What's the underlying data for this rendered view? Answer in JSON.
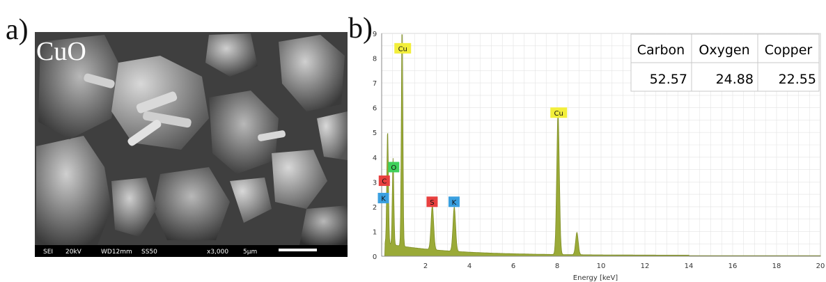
{
  "panel_a": {
    "letter": "a)",
    "overlay_label": "CuO",
    "info_bar": [
      "SEI",
      "20kV",
      "WD12mm",
      "SS50",
      "x3,000",
      "5µm"
    ]
  },
  "panel_b": {
    "letter": "b)",
    "composition_table": {
      "headers": [
        "Carbon",
        "Oxygen",
        "Copper"
      ],
      "values": [
        "52.57",
        "24.88",
        "22.55"
      ]
    }
  },
  "chart_data": {
    "type": "line",
    "xlabel": "Energy [keV]",
    "ylabel": "",
    "xlim": [
      0,
      20
    ],
    "ylim": [
      0,
      9
    ],
    "x_ticks": [
      2,
      4,
      6,
      8,
      10,
      12,
      14,
      16,
      18,
      20
    ],
    "y_ticks": [
      0,
      1,
      2,
      3,
      4,
      5,
      6,
      7,
      8,
      9
    ],
    "grid": true,
    "fill_color": "#9aaa38",
    "peaks": [
      {
        "element": "C",
        "energy": 0.28,
        "counts": 2.6,
        "label_color": "#e8403f"
      },
      {
        "element": "O",
        "energy": 0.52,
        "counts": 3.5,
        "label_color": "#3fd15a"
      },
      {
        "element": "K",
        "energy": 0.26,
        "counts": 2.2,
        "label_color": "#3aa0e0"
      },
      {
        "element": "Cu",
        "energy": 0.93,
        "counts": 8.9,
        "label_color": "#f2ee3a"
      },
      {
        "element": "S",
        "energy": 2.31,
        "counts": 1.8,
        "label_color": "#e8403f"
      },
      {
        "element": "K",
        "energy": 3.31,
        "counts": 1.8,
        "label_color": "#3aa0e0"
      },
      {
        "element": "Cu",
        "energy": 8.04,
        "counts": 5.7,
        "label_color": "#f2ee3a"
      },
      {
        "element": "Cu",
        "energy": 8.9,
        "counts": 0.9,
        "label_color": "#f2ee3a"
      }
    ],
    "labels": [
      {
        "text": "Cu",
        "energy": 0.96,
        "counts": 8.4,
        "color": "#f2ee3a"
      },
      {
        "text": "O",
        "energy": 0.55,
        "counts": 3.6,
        "color": "#3fd15a"
      },
      {
        "text": "C",
        "energy": 0.12,
        "counts": 3.05,
        "color": "#e8403f"
      },
      {
        "text": "K",
        "energy": 0.08,
        "counts": 2.35,
        "color": "#3aa0e0"
      },
      {
        "text": "S",
        "energy": 2.3,
        "counts": 2.2,
        "color": "#e8403f"
      },
      {
        "text": "K",
        "energy": 3.3,
        "counts": 2.2,
        "color": "#3aa0e0"
      },
      {
        "text": "Cu",
        "energy": 8.07,
        "counts": 5.8,
        "color": "#f2ee3a"
      }
    ]
  }
}
